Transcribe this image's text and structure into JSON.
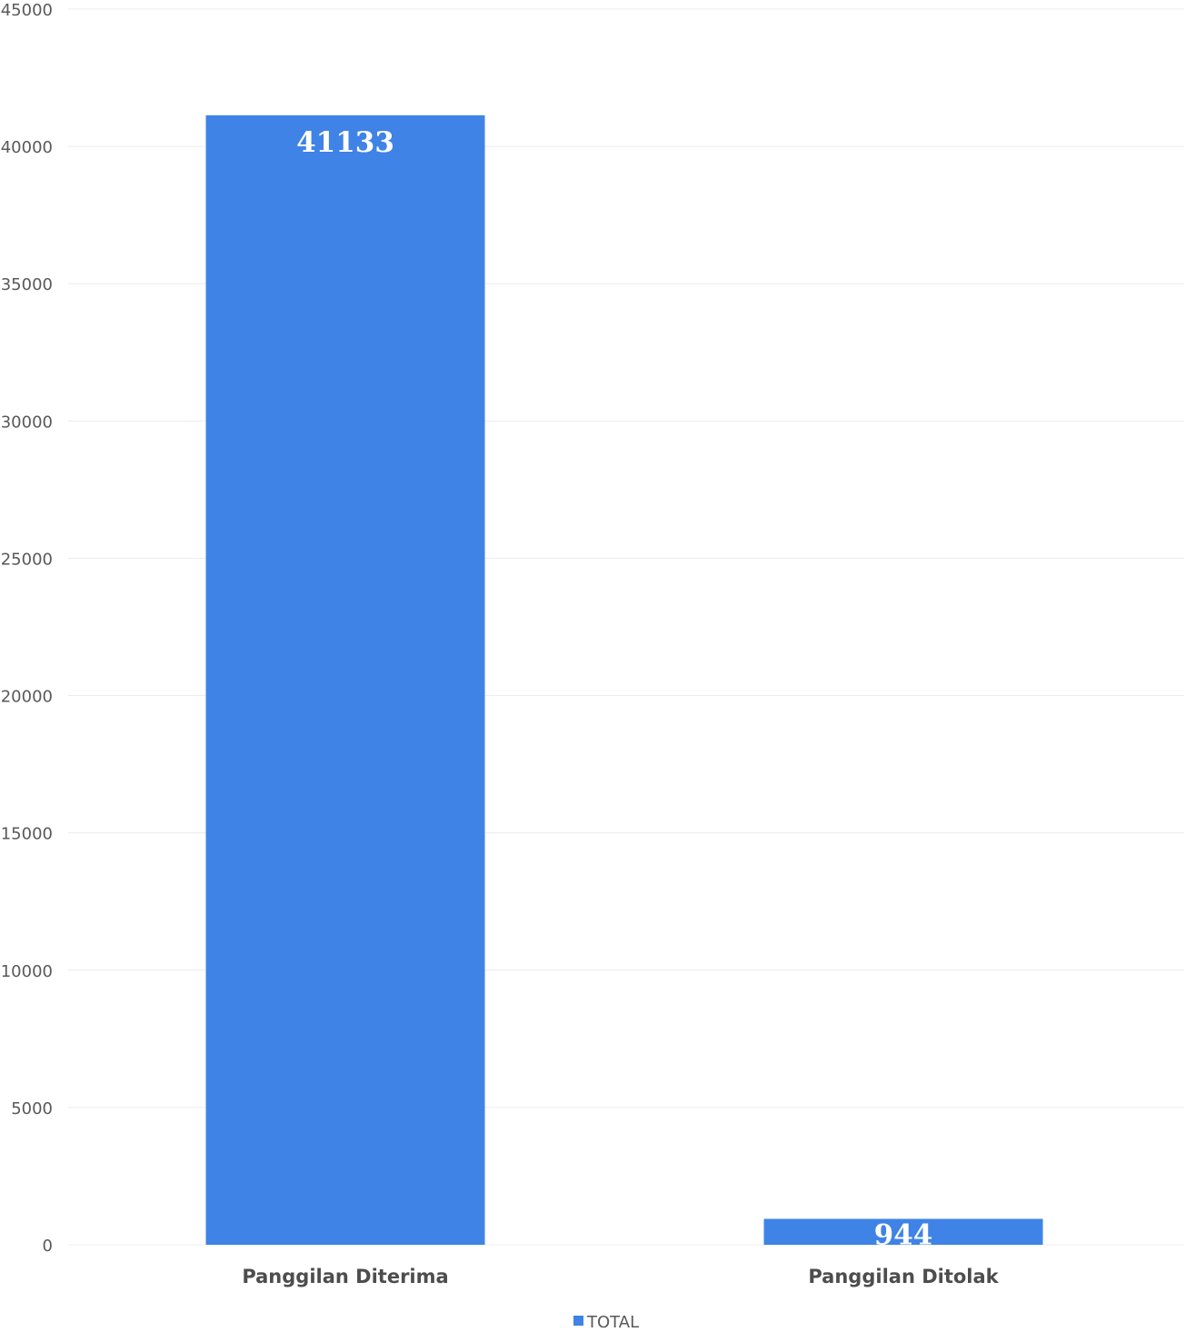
{
  "chart_data": {
    "type": "bar",
    "categories": [
      "Panggilan Diterima",
      "Panggilan Ditolak"
    ],
    "series": [
      {
        "name": "TOTAL",
        "values": [
          41133,
          944
        ],
        "color": "#3f83e6"
      }
    ],
    "data_labels": [
      "41133",
      "944"
    ],
    "ylim": [
      0,
      45000
    ],
    "yticks": [
      0,
      5000,
      10000,
      15000,
      20000,
      25000,
      30000,
      35000,
      40000,
      45000
    ],
    "ytick_labels": [
      "0",
      "5000",
      "10000",
      "15000",
      "20000",
      "25000",
      "30000",
      "35000",
      "40000",
      "45000"
    ],
    "title": "",
    "xlabel": "",
    "ylabel": "",
    "grid": true,
    "legend_position": "bottom"
  }
}
